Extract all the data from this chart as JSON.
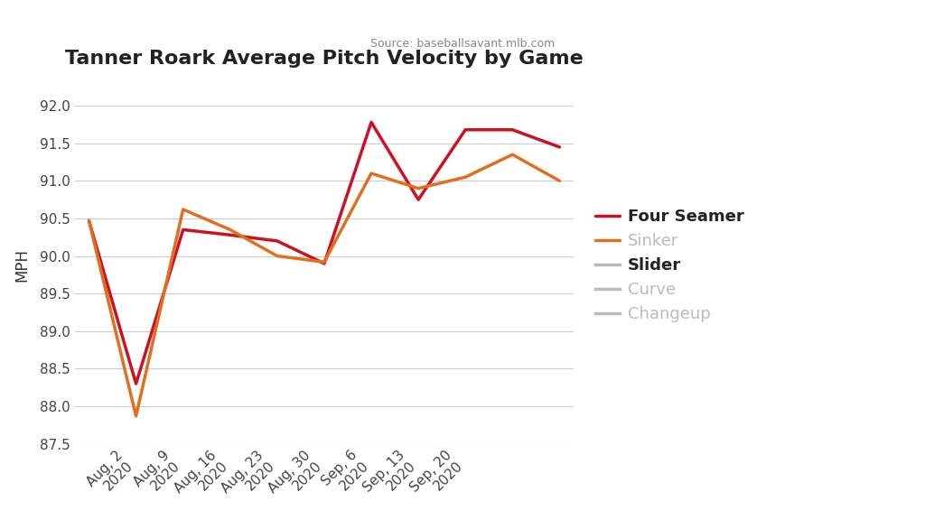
{
  "title": "Tanner Roark Average Pitch Velocity by Game",
  "subtitle": "Source: baseballsavant.mlb.com",
  "ylabel": "MPH",
  "ylim": [
    87.5,
    92.25
  ],
  "yticks": [
    87.5,
    88.0,
    88.5,
    89.0,
    89.5,
    90.0,
    90.5,
    91.0,
    91.5,
    92.0
  ],
  "four_seamer": {
    "values": [
      90.47,
      88.3,
      90.35,
      90.28,
      90.2,
      89.9,
      91.78,
      90.75,
      91.68,
      91.68,
      91.45
    ],
    "color": "#cc1122",
    "label": "Four Seamer",
    "linewidth": 2.5
  },
  "sinker": {
    "values": [
      90.47,
      87.87,
      90.62,
      90.35,
      90.0,
      89.92,
      91.1,
      90.9,
      91.05,
      91.35,
      91.0
    ],
    "color": "#e07020",
    "label": "Sinker",
    "linewidth": 2.5
  },
  "ghost_entries": [
    {
      "label": "Slider",
      "color": "#bbbbbb"
    },
    {
      "label": "Curve",
      "color": "#bbbbbb"
    },
    {
      "label": "Changeup",
      "color": "#bbbbbb"
    }
  ],
  "x_positions": [
    0,
    1,
    2,
    3,
    4,
    5,
    6,
    7,
    8,
    9,
    10
  ],
  "x_tick_positions": [
    1,
    2,
    3,
    4,
    5,
    6,
    7,
    8
  ],
  "x_labels": [
    "Aug, 2\n2020",
    "Aug, 9\n2020",
    "Aug, 16\n2020",
    "Aug, 23\n2020",
    "Aug, 30\n2020",
    "Sep, 6\n2020",
    "Sep, 13\n2020",
    "Sep, 20\n2020"
  ],
  "background_color": "#ffffff",
  "grid_color": "#cccccc",
  "title_fontsize": 16,
  "subtitle_fontsize": 9,
  "axis_label_fontsize": 12,
  "tick_fontsize": 11,
  "legend_fontsize": 13
}
